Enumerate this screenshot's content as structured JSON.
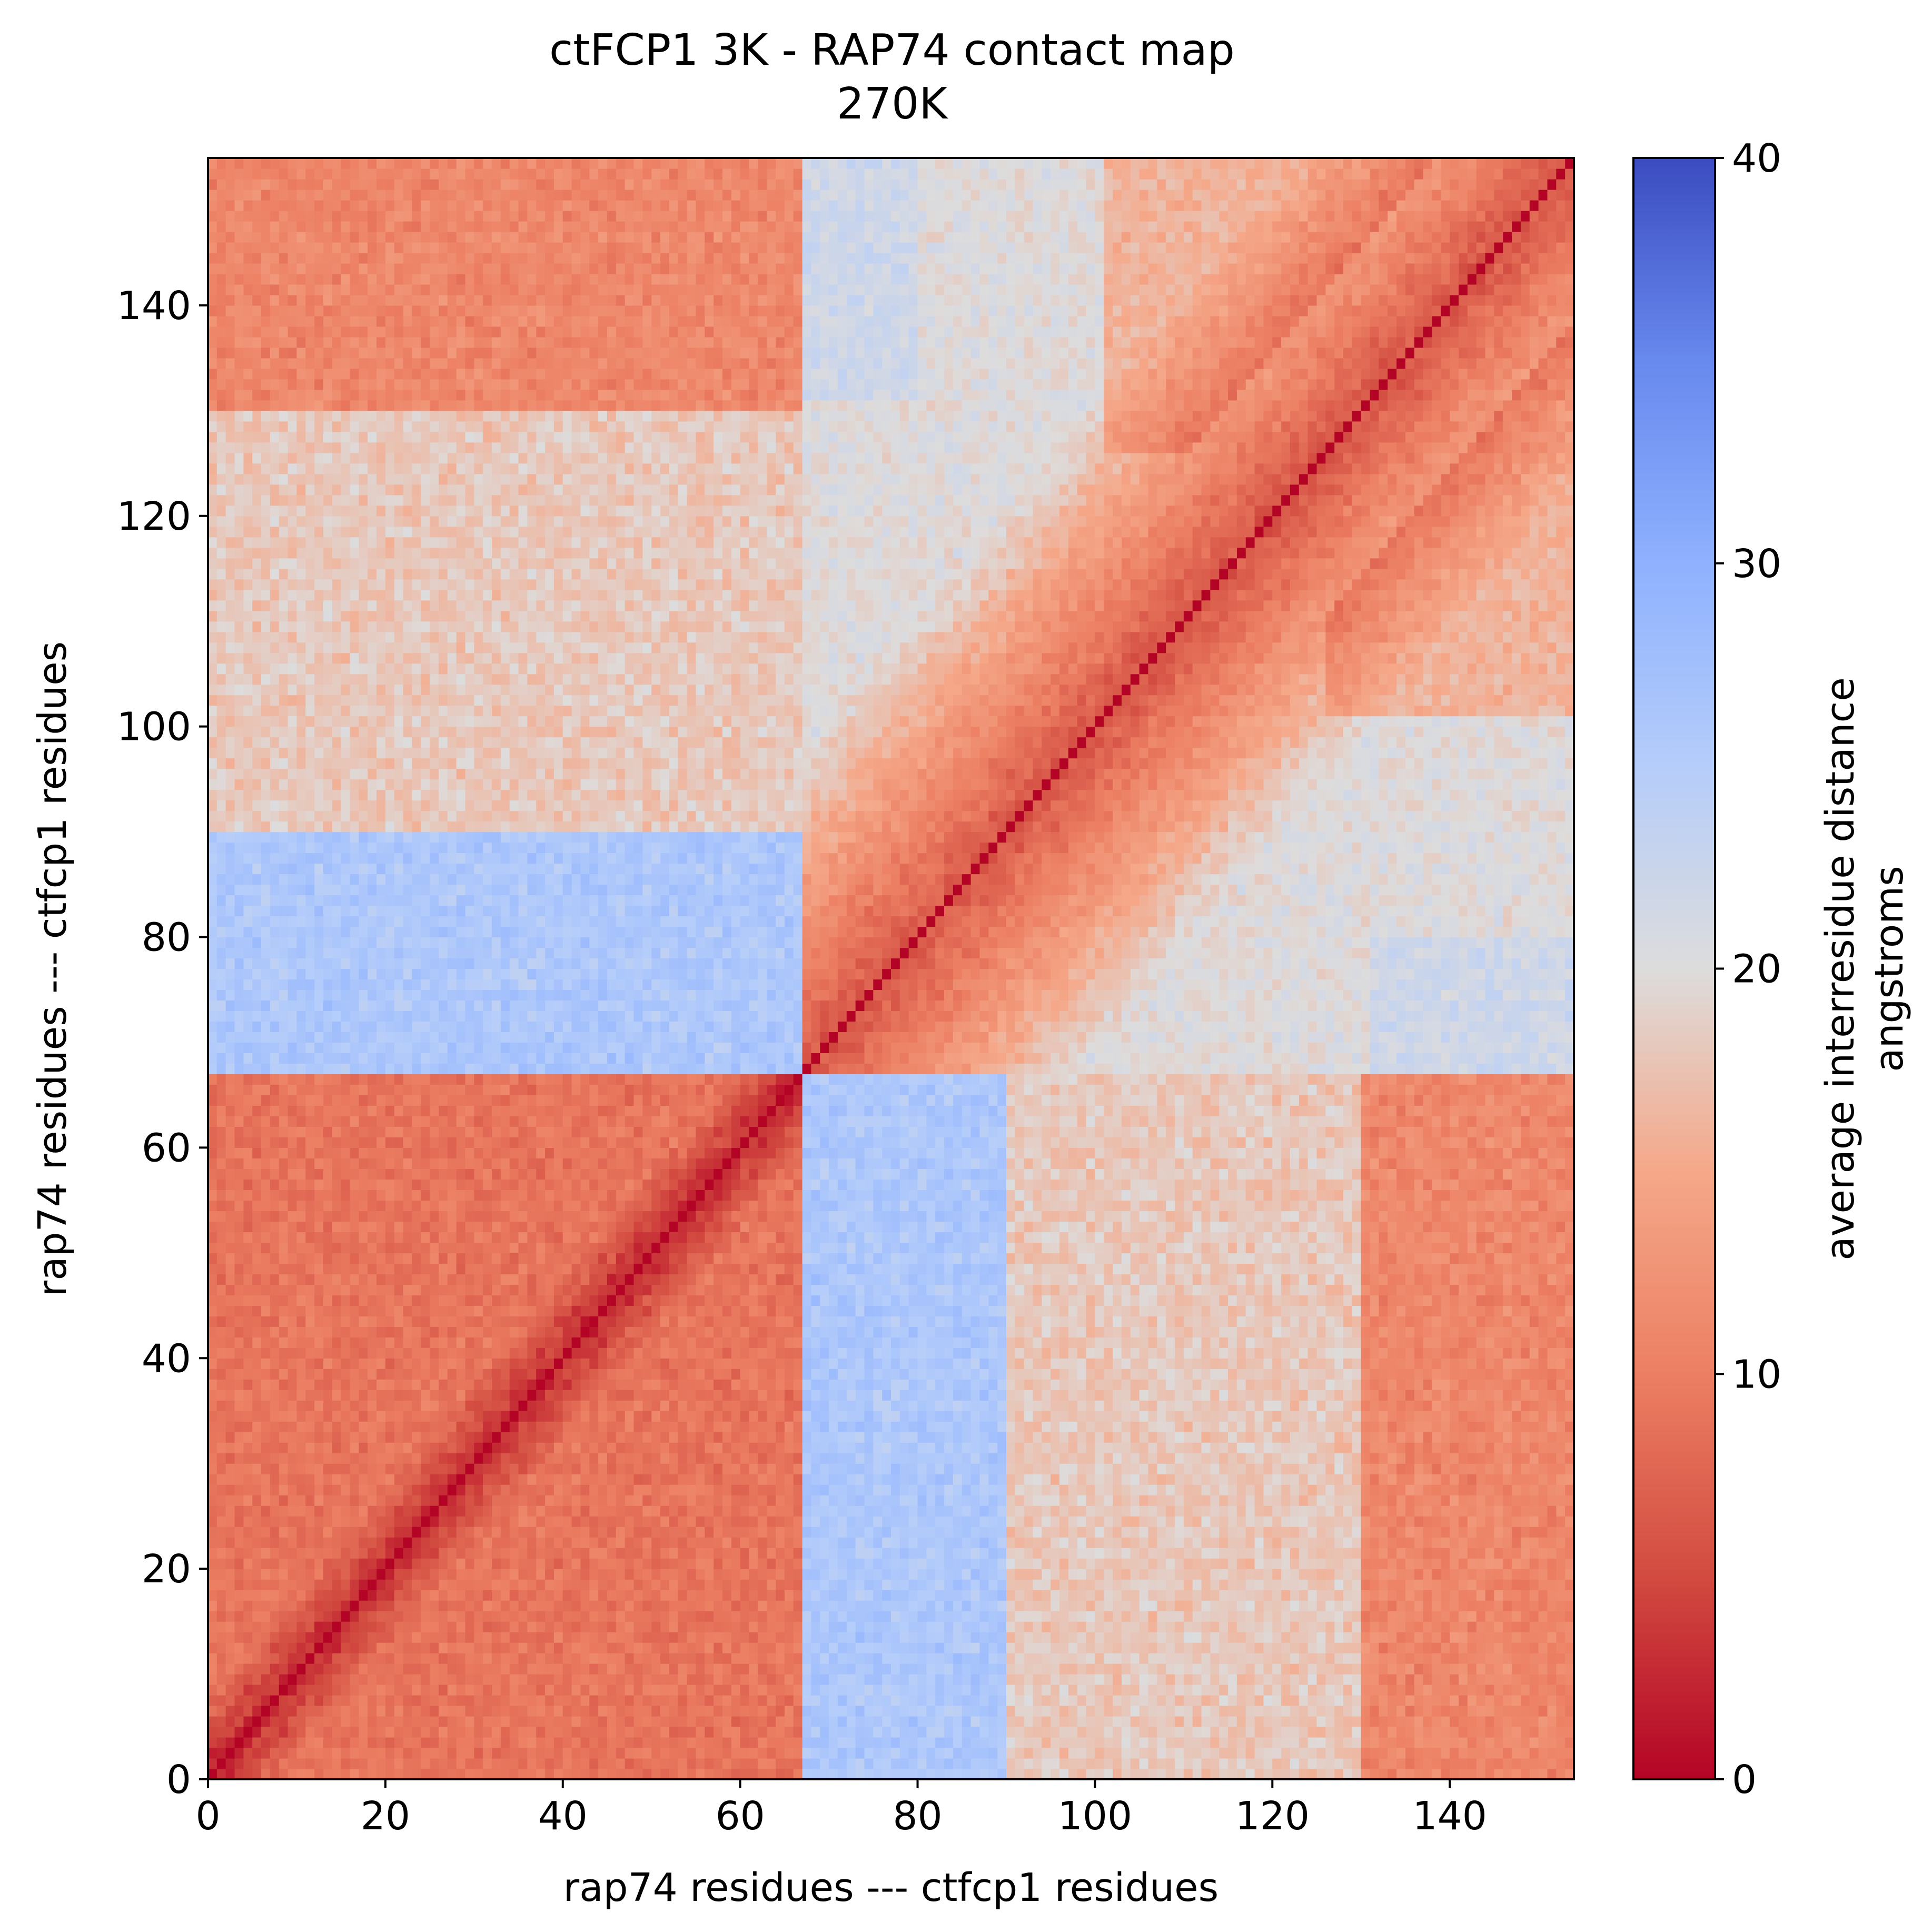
{
  "chart_data": {
    "type": "heatmap",
    "title": "ctFCP1 3K - RAP74 contact map",
    "subtitle": "270K",
    "xlabel": "rap74 residues --- ctfcp1 residues",
    "ylabel": "rap74 residues --- ctfcp1 residues",
    "xlim": [
      0,
      154
    ],
    "ylim": [
      0,
      154
    ],
    "x_ticks": [
      0,
      20,
      40,
      60,
      80,
      100,
      120,
      140
    ],
    "y_ticks": [
      0,
      20,
      40,
      60,
      80,
      100,
      120,
      140
    ],
    "block_boundary": 67,
    "n_residues": 154,
    "colormap": "coolwarm_r",
    "colorbar": {
      "label_line1": "average interresidue distance",
      "label_line2": "angstroms",
      "range": [
        0,
        40
      ],
      "ticks": [
        0,
        10,
        20,
        30,
        40
      ]
    },
    "approx_values": {
      "diagonal": 0,
      "within_rap74_block": 9,
      "within_ctfcp1_near_diagonal": 6,
      "between_rap74_and_ctfcp1_residues_67_to_90": 26,
      "between_rap74_and_ctfcp1_residues_90_to_130": 18,
      "between_rap74_and_ctfcp1_residues_130_to_154": 11
    },
    "grid": false,
    "legend": "colorbar-right"
  },
  "colors": {
    "low": "#b40426",
    "mid": "#dddcdc",
    "high": "#3b4cc0"
  }
}
